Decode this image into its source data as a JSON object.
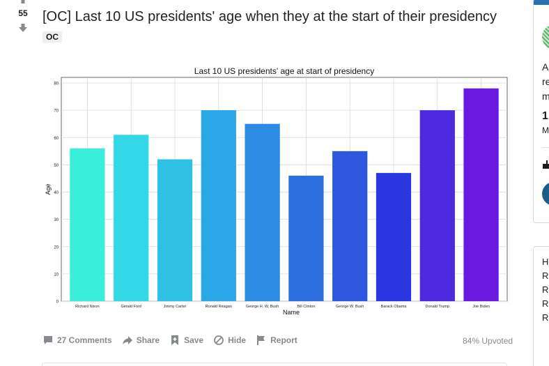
{
  "post": {
    "score": "55",
    "title": "[OC] Last 10 US presidents' age when they at the start of their presidency",
    "flair": "OC",
    "actions": {
      "comments": "27 Comments",
      "share": "Share",
      "save": "Save",
      "hide": "Hide",
      "report": "Report"
    },
    "upvoted": "84% Upvoted"
  },
  "sidebar": {
    "about_lines": [
      "A",
      "re",
      "m"
    ],
    "stat_value": "1",
    "stat_label": "M",
    "rules_lines": [
      "H",
      "Re",
      "Re",
      "Re",
      "Re"
    ]
  },
  "colors": {
    "accent_blue": "#2a6fb3",
    "meta_gray": "#878a8c"
  },
  "chart_data": {
    "type": "bar",
    "title": "Last 10 US presidents' age at start of presidency",
    "xlabel": "Name",
    "ylabel": "Age",
    "ylim": [
      0,
      80
    ],
    "yticks": [
      0,
      10,
      20,
      30,
      40,
      50,
      60,
      70,
      80
    ],
    "grid": true,
    "categories": [
      "Richard Nixon",
      "Gerald Ford",
      "Jimmy Carter",
      "Ronald Reagan",
      "George H. W. Bush",
      "Bill Clinton",
      "George W. Bush",
      "Barack Obama",
      "Donald Trump",
      "Joe Biden"
    ],
    "values": [
      56,
      61,
      52,
      70,
      65,
      46,
      55,
      47,
      70,
      78
    ],
    "colors": [
      "#3aeedc",
      "#33d8e6",
      "#2fc0e6",
      "#2ba6e6",
      "#2b8ae2",
      "#2b6fdc",
      "#2b58dc",
      "#2a37e0",
      "#4d2ae0",
      "#6a1ae0"
    ]
  }
}
